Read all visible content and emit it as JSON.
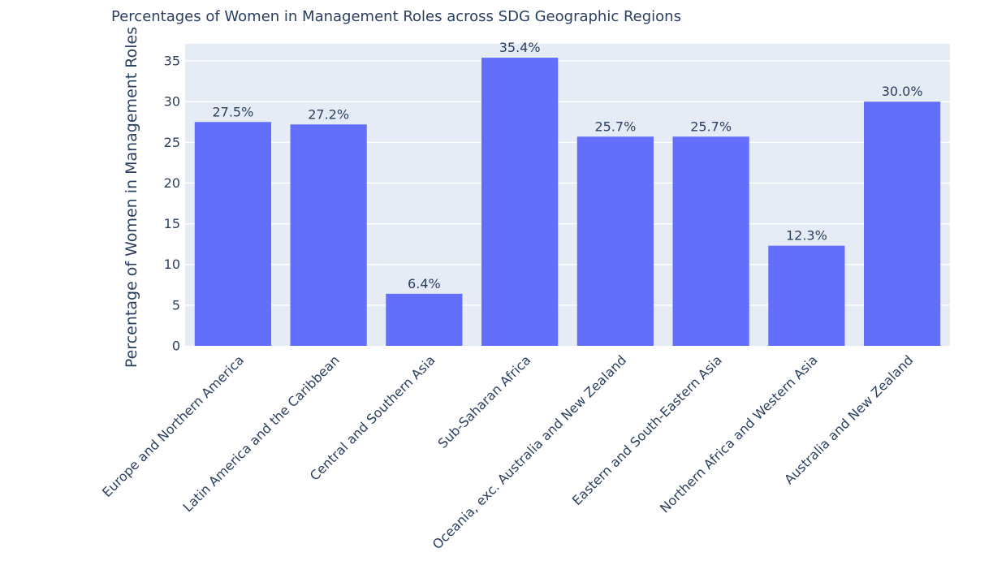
{
  "chart_data": {
    "type": "bar",
    "title": "Percentages of Women in Management Roles across SDG Geographic Regions",
    "xlabel": "",
    "ylabel": "Percentage of Women in Management Roles",
    "categories": [
      "Europe and Northern America",
      "Latin America and the Caribbean",
      "Central and Southern Asia",
      "Sub-Saharan Africa",
      "Oceania, exc. Australia and New Zealand",
      "Eastern and South-Eastern Asia",
      "Northern Africa and Western Asia",
      "Australia and New Zealand"
    ],
    "values": [
      27.5,
      27.2,
      6.4,
      35.4,
      25.7,
      25.7,
      12.3,
      30.0
    ],
    "value_labels": [
      "27.5%",
      "27.2%",
      "6.4%",
      "35.4%",
      "25.7%",
      "25.7%",
      "12.3%",
      "30.0%"
    ],
    "ylim": [
      0,
      37.1
    ],
    "yticks": [
      0,
      5,
      10,
      15,
      20,
      25,
      30,
      35
    ],
    "grid": true,
    "legend": "none",
    "colors": {
      "bar": "#636efa",
      "plot_background": "#e5ecf6",
      "gridline": "#ffffff",
      "text": "#2a3f5f"
    }
  }
}
